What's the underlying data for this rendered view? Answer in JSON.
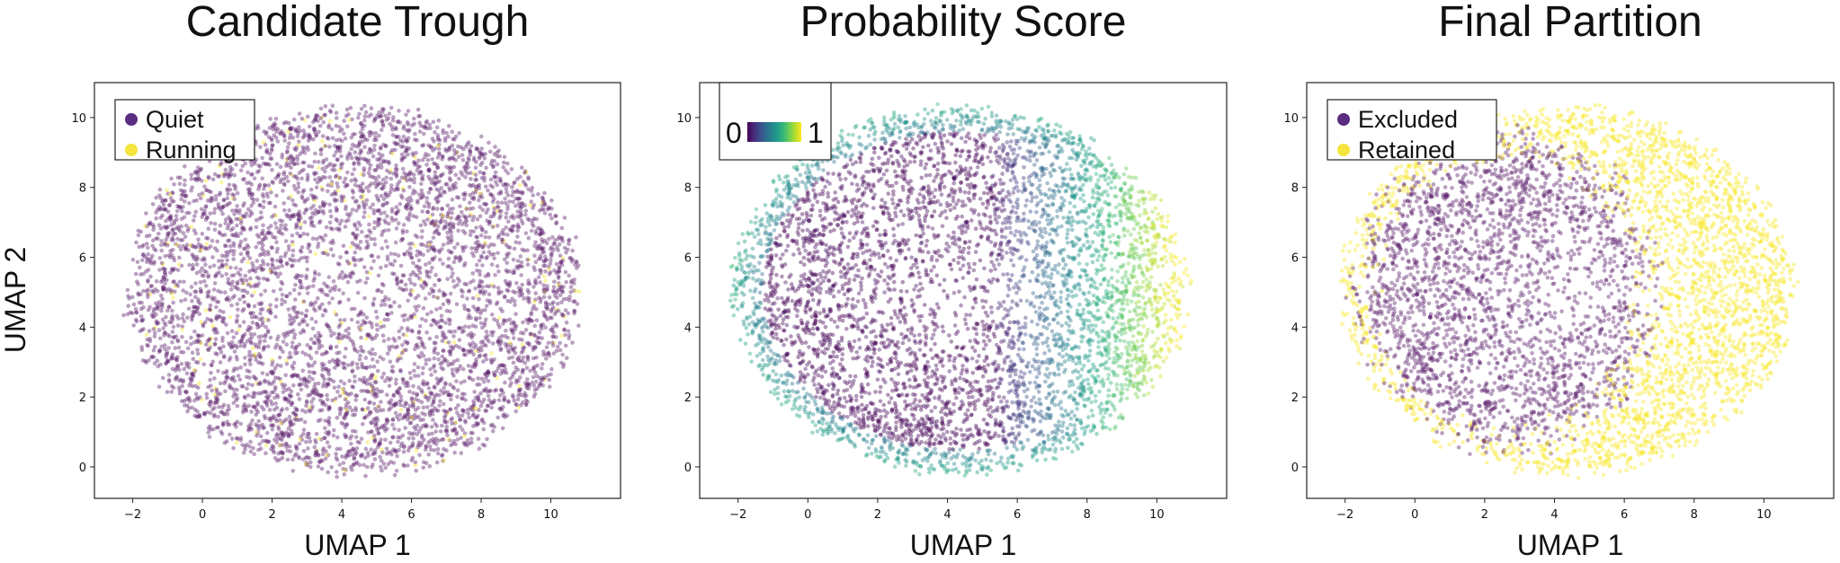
{
  "figure": {
    "shared_ylabel": "UMAP 2"
  },
  "palette": {
    "purple": "#5b1c6b",
    "yellow": "#f7e629",
    "legend_purple": "#5a2d83",
    "legend_yellow": "#f4e43c",
    "viridis": [
      "#440154",
      "#482878",
      "#3e4989",
      "#31688e",
      "#26828e",
      "#1f9e89",
      "#35b779",
      "#6ece58",
      "#b5de2b",
      "#fde725"
    ]
  },
  "chart_data": [
    {
      "type": "scatter",
      "title": "Candidate Trough",
      "xlabel": "UMAP 1",
      "ylabel": "UMAP 2",
      "xlim": [
        -3.1,
        12.0
      ],
      "ylim": [
        -0.9,
        11.0
      ],
      "xticks": [
        -2,
        0,
        2,
        4,
        6,
        8,
        10
      ],
      "yticks": [
        0,
        2,
        4,
        6,
        8,
        10
      ],
      "grid": false,
      "legend": {
        "type": "categorical",
        "position": "top-left",
        "entries": [
          {
            "label": "Quiet",
            "color": "purple"
          },
          {
            "label": "Running",
            "color": "yellow"
          }
        ]
      },
      "cloud": {
        "center": [
          4.35,
          5.05
        ],
        "radius_x": 6.55,
        "radius_y": 5.3
      },
      "coloring": "mostly Quiet; Running points sparse and scattered throughout"
    },
    {
      "type": "scatter",
      "title": "Probability Score",
      "xlabel": "UMAP 1",
      "ylabel": "UMAP 2",
      "xlim": [
        -3.1,
        12.0
      ],
      "ylim": [
        -0.9,
        11.0
      ],
      "xticks": [
        -2,
        0,
        2,
        4,
        6,
        8,
        10
      ],
      "yticks": [
        0,
        2,
        4,
        6,
        8,
        10
      ],
      "grid": false,
      "legend": {
        "type": "colorbar",
        "position": "top-left",
        "min_label": "0",
        "max_label": "1",
        "cmap": "viridis"
      },
      "cloud": {
        "center": [
          4.35,
          5.05
        ],
        "radius_x": 6.55,
        "radius_y": 5.3
      },
      "coloring": "score rises from ~0 in the left/center body to ~1 at the right edge (x > 9.5); teal rim around the left and bottom edges"
    },
    {
      "type": "scatter",
      "title": "Final Partition",
      "xlabel": "UMAP 1",
      "ylabel": "UMAP 2",
      "xlim": [
        -3.1,
        12.0
      ],
      "ylim": [
        -0.9,
        11.0
      ],
      "xticks": [
        -2,
        0,
        2,
        4,
        6,
        8,
        10
      ],
      "yticks": [
        0,
        2,
        4,
        6,
        8,
        10
      ],
      "grid": false,
      "legend": {
        "type": "categorical",
        "position": "top-left",
        "entries": [
          {
            "label": "Excluded",
            "color": "purple"
          },
          {
            "label": "Retained",
            "color": "yellow"
          }
        ]
      },
      "cloud": {
        "center": [
          4.35,
          5.05
        ],
        "radius_x": 6.55,
        "radius_y": 5.3
      },
      "coloring": "Excluded core centred near (2.6, 5.0); Retained forms the right half (x > 6.5) and a thin rim around the cloud"
    }
  ]
}
